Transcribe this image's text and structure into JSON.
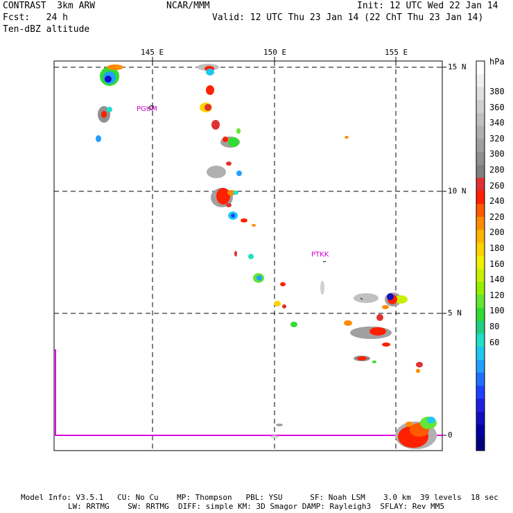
{
  "header": {
    "left_line1": "CONTRAST  3km ARW",
    "left_line2": "Fcst:   24 h",
    "left_line3": "Ten-dBZ altitude",
    "center_line1": "NCAR/MMM",
    "right_line1": "Init: 12 UTC Wed 22 Jan 14",
    "right_line2": "Valid: 12 UTC Thu 23 Jan 14 (22 ChT Thu 23 Jan 14)"
  },
  "map": {
    "lon_labels": [
      "145 E",
      "150 E",
      "155 E"
    ],
    "lat_labels": [
      "15 N",
      "10 N",
      "5 N",
      "0"
    ],
    "stations": [
      "PGUM",
      "PTKK"
    ]
  },
  "colorbar": {
    "unit": "hPa",
    "labels": [
      "380",
      "360",
      "340",
      "320",
      "300",
      "280",
      "260",
      "240",
      "220",
      "200",
      "180",
      "160",
      "140",
      "120",
      "100",
      "80",
      "60"
    ],
    "colors": [
      "#ffffff",
      "#f0f0f0",
      "#e0e0e0",
      "#d0d0d0",
      "#c0c0c0",
      "#b0b0b0",
      "#a0a0a0",
      "#909090",
      "#808080",
      "#e03030",
      "#ff2000",
      "#ff5a00",
      "#ff8c00",
      "#ffb400",
      "#ffd200",
      "#f0f000",
      "#c8f000",
      "#96f000",
      "#64e632",
      "#32dc32",
      "#20d080",
      "#20e0c8",
      "#20c8f0",
      "#20a0ff",
      "#2070ff",
      "#2040ff",
      "#2020e0",
      "#1010c0",
      "#0000a0",
      "#000080"
    ]
  },
  "footer": {
    "line1": "Model Info: V3.5.1   CU: No Cu    MP: Thompson   PBL: YSU      SF: Noah LSM    3.0 km  39 levels  18 sec",
    "line2": "LW: RRTMG    SW: RRTMG  DIFF: simple KM: 3D Smagor DAMP: Rayleigh3  SFLAY: Rev MM5"
  }
}
